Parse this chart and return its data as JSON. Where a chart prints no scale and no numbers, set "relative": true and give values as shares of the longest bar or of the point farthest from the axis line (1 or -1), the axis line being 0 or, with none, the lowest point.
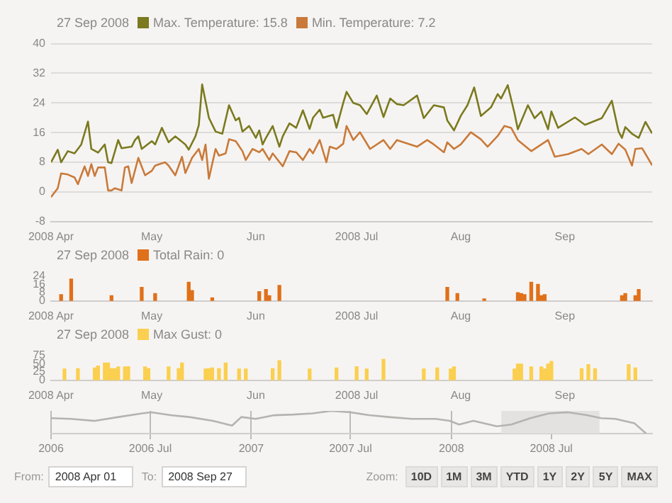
{
  "chart_data": [
    {
      "type": "line",
      "legend_title": "27 Sep 2008",
      "legend": "top left",
      "grid": "y",
      "xlim": [
        "2008-04-01",
        "2008-09-27"
      ],
      "ylim": [
        -8,
        40
      ],
      "yticks": [
        -8,
        0,
        8,
        16,
        24,
        32,
        40
      ],
      "xticks": [
        {
          "value": "2008-04-01",
          "label": "2008 Apr"
        },
        {
          "value": "2008-05-01",
          "label": "May"
        },
        {
          "value": "2008-06-01",
          "label": "Jun"
        },
        {
          "value": "2008-07-01",
          "label": "2008 Jul"
        },
        {
          "value": "2008-08-01",
          "label": "Aug"
        },
        {
          "value": "2008-09-01",
          "label": "Sep"
        }
      ],
      "series": [
        {
          "name": "Max. Temperature: 15.8",
          "color": "#7b7a1f",
          "x": [
            "2008-04-01",
            "2008-04-03",
            "2008-04-04",
            "2008-04-06",
            "2008-04-08",
            "2008-04-10",
            "2008-04-12",
            "2008-04-13",
            "2008-04-15",
            "2008-04-17",
            "2008-04-18",
            "2008-04-19",
            "2008-04-21",
            "2008-04-22",
            "2008-04-25",
            "2008-04-26",
            "2008-04-27",
            "2008-04-28",
            "2008-05-01",
            "2008-05-02",
            "2008-05-04",
            "2008-05-06",
            "2008-05-08",
            "2008-05-11",
            "2008-05-12",
            "2008-05-14",
            "2008-05-15",
            "2008-05-16",
            "2008-05-18",
            "2008-05-20",
            "2008-05-22",
            "2008-05-24",
            "2008-05-26",
            "2008-05-27",
            "2008-05-28",
            "2008-05-30",
            "2008-06-01",
            "2008-06-02",
            "2008-06-03",
            "2008-06-04",
            "2008-06-06",
            "2008-06-08",
            "2008-06-09",
            "2008-06-11",
            "2008-06-13",
            "2008-06-15",
            "2008-06-17",
            "2008-06-18",
            "2008-06-20",
            "2008-06-21",
            "2008-06-24",
            "2008-06-25",
            "2008-06-27",
            "2008-06-28",
            "2008-06-30",
            "2008-07-02",
            "2008-07-04",
            "2008-07-07",
            "2008-07-09",
            "2008-07-11",
            "2008-07-13",
            "2008-07-15",
            "2008-07-19",
            "2008-07-21",
            "2008-07-24",
            "2008-07-27",
            "2008-07-28",
            "2008-07-30",
            "2008-08-01",
            "2008-08-03",
            "2008-08-05",
            "2008-08-07",
            "2008-08-10",
            "2008-08-12",
            "2008-08-13",
            "2008-08-15",
            "2008-08-17",
            "2008-08-18",
            "2008-08-21",
            "2008-08-23",
            "2008-08-25",
            "2008-08-27",
            "2008-08-28",
            "2008-08-30",
            "2008-09-04",
            "2008-09-07",
            "2008-09-12",
            "2008-09-15",
            "2008-09-17",
            "2008-09-18",
            "2008-09-19",
            "2008-09-21",
            "2008-09-23",
            "2008-09-25",
            "2008-09-27"
          ],
          "values": [
            8.0,
            11.4,
            8.0,
            11.0,
            10.4,
            12.8,
            19.0,
            11.6,
            10.6,
            12.8,
            8.0,
            7.8,
            14.0,
            11.8,
            12.2,
            14.0,
            15.0,
            11.6,
            13.7,
            12.8,
            17.3,
            13.4,
            15.0,
            12.8,
            11.4,
            15.0,
            18.0,
            29.0,
            20.0,
            16.3,
            15.7,
            23.4,
            19.3,
            20.0,
            16.3,
            17.8,
            14.6,
            16.6,
            12.8,
            14.6,
            17.8,
            12.2,
            15.0,
            18.5,
            17.3,
            22.0,
            17.0,
            20.0,
            22.2,
            20.0,
            20.8,
            17.3,
            24.0,
            27.0,
            24.0,
            23.4,
            21.0,
            26.0,
            20.2,
            25.2,
            23.7,
            23.4,
            26.0,
            19.9,
            23.4,
            22.8,
            19.3,
            16.6,
            20.5,
            23.4,
            28.2,
            20.5,
            22.8,
            26.4,
            25.2,
            28.8,
            21.3,
            16.9,
            23.4,
            19.9,
            21.7,
            16.9,
            21.7,
            17.3,
            20.1,
            18.1,
            19.9,
            24.6,
            16.3,
            14.6,
            17.5,
            15.7,
            14.6,
            18.9,
            15.8
          ]
        },
        {
          "name": "Min. Temperature: 7.2",
          "color": "#c97a3a",
          "x": [
            "2008-04-01",
            "2008-04-03",
            "2008-04-04",
            "2008-04-06",
            "2008-04-08",
            "2008-04-09",
            "2008-04-11",
            "2008-04-12",
            "2008-04-13",
            "2008-04-14",
            "2008-04-15",
            "2008-04-17",
            "2008-04-18",
            "2008-04-19",
            "2008-04-20",
            "2008-04-22",
            "2008-04-23",
            "2008-04-24",
            "2008-04-25",
            "2008-04-27",
            "2008-04-29",
            "2008-05-01",
            "2008-05-02",
            "2008-05-05",
            "2008-05-06",
            "2008-05-08",
            "2008-05-10",
            "2008-05-11",
            "2008-05-13",
            "2008-05-15",
            "2008-05-16",
            "2008-05-17",
            "2008-05-18",
            "2008-05-20",
            "2008-05-21",
            "2008-05-23",
            "2008-05-24",
            "2008-05-26",
            "2008-05-28",
            "2008-05-29",
            "2008-05-31",
            "2008-06-02",
            "2008-06-03",
            "2008-06-05",
            "2008-06-06",
            "2008-06-09",
            "2008-06-11",
            "2008-06-13",
            "2008-06-15",
            "2008-06-17",
            "2008-06-18",
            "2008-06-20",
            "2008-06-22",
            "2008-06-23",
            "2008-06-25",
            "2008-06-27",
            "2008-06-28",
            "2008-06-30",
            "2008-07-02",
            "2008-07-05",
            "2008-07-09",
            "2008-07-11",
            "2008-07-13",
            "2008-07-17",
            "2008-07-19",
            "2008-07-22",
            "2008-07-24",
            "2008-07-27",
            "2008-07-28",
            "2008-07-30",
            "2008-08-01",
            "2008-08-04",
            "2008-08-07",
            "2008-08-09",
            "2008-08-12",
            "2008-08-14",
            "2008-08-16",
            "2008-08-18",
            "2008-08-22",
            "2008-08-25",
            "2008-08-27",
            "2008-08-29",
            "2008-09-02",
            "2008-09-06",
            "2008-09-08",
            "2008-09-12",
            "2008-09-15",
            "2008-09-17",
            "2008-09-19",
            "2008-09-21",
            "2008-09-22",
            "2008-09-24",
            "2008-09-27"
          ],
          "values": [
            -1.4,
            1.0,
            5.0,
            4.7,
            3.9,
            2.1,
            6.9,
            4.3,
            7.5,
            4.3,
            6.6,
            6.6,
            0.4,
            0.4,
            1.0,
            0.4,
            6.6,
            6.9,
            2.4,
            9.2,
            4.5,
            5.7,
            7.1,
            8.0,
            7.1,
            4.5,
            9.5,
            5.1,
            9.2,
            11.6,
            8.6,
            12.8,
            3.6,
            11.6,
            9.8,
            10.4,
            14.2,
            13.7,
            11.0,
            8.6,
            11.6,
            10.7,
            11.6,
            8.6,
            10.4,
            6.9,
            11.0,
            10.7,
            8.6,
            11.6,
            10.4,
            14.0,
            8.0,
            12.2,
            11.6,
            13.0,
            17.8,
            14.0,
            16.1,
            11.6,
            14.0,
            11.6,
            14.0,
            12.8,
            12.2,
            14.0,
            12.8,
            10.7,
            13.4,
            11.6,
            12.8,
            16.1,
            14.2,
            12.2,
            15.1,
            17.8,
            17.3,
            14.0,
            11.0,
            12.8,
            14.0,
            9.5,
            10.2,
            11.6,
            10.2,
            12.8,
            10.2,
            13.0,
            11.4,
            7.1,
            11.6,
            11.8,
            7.2
          ]
        }
      ]
    },
    {
      "type": "bar",
      "legend_title": "27 Sep 2008",
      "legend": "top left",
      "xlim": [
        "2008-04-01",
        "2008-09-27"
      ],
      "ylim": [
        0,
        24
      ],
      "yticks": [
        0,
        8,
        16,
        24
      ],
      "xticks": [
        {
          "value": "2008-04-01",
          "label": "2008 Apr"
        },
        {
          "value": "2008-05-01",
          "label": "May"
        },
        {
          "value": "2008-06-01",
          "label": "Jun"
        },
        {
          "value": "2008-07-01",
          "label": "2008 Jul"
        },
        {
          "value": "2008-08-01",
          "label": "Aug"
        },
        {
          "value": "2008-09-01",
          "label": "Sep"
        }
      ],
      "series": [
        {
          "name": "Total Rain: 0",
          "color": "#e0701a",
          "x": [
            "2008-04-04",
            "2008-04-07",
            "2008-04-19",
            "2008-04-28",
            "2008-05-02",
            "2008-05-12",
            "2008-05-13",
            "2008-05-19",
            "2008-06-02",
            "2008-06-04",
            "2008-06-05",
            "2008-06-08",
            "2008-07-28",
            "2008-07-31",
            "2008-08-08",
            "2008-08-18",
            "2008-08-19",
            "2008-08-20",
            "2008-08-22",
            "2008-08-24",
            "2008-08-25",
            "2008-08-26",
            "2008-09-18",
            "2008-09-19",
            "2008-09-22",
            "2008-09-23"
          ],
          "values": [
            6,
            21,
            5,
            13,
            7,
            18,
            10,
            3,
            9,
            11,
            5,
            15,
            13,
            7,
            2,
            8,
            7,
            6,
            18,
            16,
            5,
            6,
            5,
            7,
            5,
            11
          ]
        }
      ]
    },
    {
      "type": "bar",
      "legend_title": "27 Sep 2008",
      "legend": "top left",
      "xlim": [
        "2008-04-01",
        "2008-09-27"
      ],
      "ylim": [
        0,
        75
      ],
      "yticks": [
        0,
        25,
        50,
        75
      ],
      "xticks": [
        {
          "value": "2008-04-01",
          "label": "2008 Apr"
        },
        {
          "value": "2008-05-01",
          "label": "May"
        },
        {
          "value": "2008-06-01",
          "label": "Jun"
        },
        {
          "value": "2008-07-01",
          "label": "2008 Jul"
        },
        {
          "value": "2008-08-01",
          "label": "Aug"
        },
        {
          "value": "2008-09-01",
          "label": "Sep"
        }
      ],
      "series": [
        {
          "name": "Max Gust: 0",
          "color": "#fbcf4f",
          "x": [
            "2008-04-05",
            "2008-04-09",
            "2008-04-14",
            "2008-04-15",
            "2008-04-17",
            "2008-04-18",
            "2008-04-19",
            "2008-04-20",
            "2008-04-21",
            "2008-04-23",
            "2008-04-24",
            "2008-04-29",
            "2008-04-30",
            "2008-05-06",
            "2008-05-09",
            "2008-05-10",
            "2008-05-17",
            "2008-05-18",
            "2008-05-19",
            "2008-05-21",
            "2008-05-23",
            "2008-05-27",
            "2008-05-29",
            "2008-06-06",
            "2008-06-08",
            "2008-06-17",
            "2008-06-25",
            "2008-07-01",
            "2008-07-04",
            "2008-07-09",
            "2008-07-21",
            "2008-07-25",
            "2008-07-29",
            "2008-07-30",
            "2008-08-17",
            "2008-08-18",
            "2008-08-19",
            "2008-08-22",
            "2008-08-25",
            "2008-08-26",
            "2008-08-27",
            "2008-08-28",
            "2008-09-06",
            "2008-09-08",
            "2008-09-10",
            "2008-09-20",
            "2008-09-22"
          ],
          "values": [
            34,
            35,
            37,
            43,
            52,
            52,
            35,
            35,
            40,
            40,
            41,
            40,
            35,
            40,
            35,
            52,
            34,
            35,
            37,
            35,
            52,
            34,
            34,
            35,
            59,
            34,
            37,
            41,
            34,
            63,
            34,
            37,
            34,
            40,
            34,
            49,
            49,
            40,
            40,
            34,
            49,
            57,
            35,
            47,
            35,
            47,
            37
          ]
        }
      ]
    },
    {
      "type": "line",
      "relative": true,
      "grid": "x",
      "xlim": [
        "2006-01-01",
        "2009-01-01"
      ],
      "xticks": [
        {
          "value": "2006-01-01",
          "label": "2006"
        },
        {
          "value": "2006-07-01",
          "label": "2006 Jul"
        },
        {
          "value": "2007-01-01",
          "label": "2007"
        },
        {
          "value": "2007-07-01",
          "label": "2007 Jul"
        },
        {
          "value": "2008-01-01",
          "label": "2008"
        },
        {
          "value": "2008-07-01",
          "label": "2008 Jul"
        }
      ],
      "bands": [
        {
          "axis": "x",
          "from": "2008-04-01",
          "to": "2008-09-27",
          "color": "#e4e2e0"
        }
      ],
      "series": [
        {
          "color": "#b5b3b0",
          "x": [
            "2006-01-01",
            "2006-02-06",
            "2006-03-22",
            "2006-05-04",
            "2006-06-16",
            "2006-07-03",
            "2006-08-07",
            "2006-09-10",
            "2006-10-23",
            "2006-11-27",
            "2006-12-14",
            "2007-01-09",
            "2007-02-12",
            "2007-03-19",
            "2007-04-23",
            "2007-05-27",
            "2007-07-01",
            "2007-08-04",
            "2007-09-08",
            "2007-10-21",
            "2007-12-03",
            "2007-12-29",
            "2008-01-15",
            "2008-02-10",
            "2008-03-24",
            "2008-04-19",
            "2008-05-24",
            "2008-06-27",
            "2008-08-01",
            "2008-09-04",
            "2008-09-30",
            "2008-10-26",
            "2008-11-30",
            "2008-12-21"
          ],
          "values": [
            0.68,
            0.65,
            0.56,
            0.73,
            0.89,
            0.94,
            0.81,
            0.73,
            0.56,
            0.35,
            0.73,
            0.65,
            0.81,
            0.84,
            0.89,
            1,
            0.94,
            0.81,
            0.73,
            0.65,
            0.65,
            0.56,
            0.4,
            0.56,
            0.32,
            0.4,
            0.68,
            0.89,
            0.94,
            0.81,
            0.68,
            0.65,
            0.45,
            0
          ]
        }
      ],
      "annotations": [
        "From:",
        "2008 Apr 01",
        "To:",
        "2008 Sep 27",
        "Zoom:",
        "10D",
        "1M",
        "3M",
        "YTD",
        "1Y",
        "2Y",
        "5Y",
        "MAX"
      ]
    }
  ]
}
